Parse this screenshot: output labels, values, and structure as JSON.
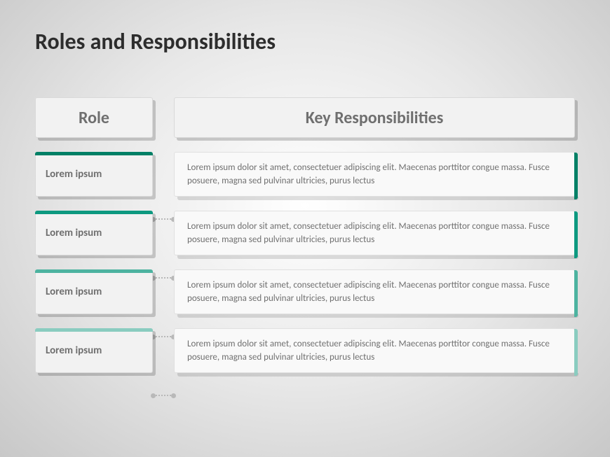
{
  "title": "Roles and Responsibilities",
  "headers": {
    "role": "Role",
    "resp": "Key Responsibilities"
  },
  "row_accents": [
    "#008066",
    "#0d9980",
    "#4db3a0",
    "#8accc0"
  ],
  "resp_accents": [
    "#008066",
    "#0d9980",
    "#4db3a0",
    "#8accc0"
  ],
  "rows": [
    {
      "role": "Lorem ipsum",
      "resp": "Lorem ipsum dolor sit amet, consectetuer adipiscing elit. Maecenas porttitor congue massa. Fusce posuere, magna sed pulvinar ultricies, purus lectus"
    },
    {
      "role": "Lorem ipsum",
      "resp": "Lorem ipsum dolor sit amet, consectetuer adipiscing elit. Maecenas porttitor congue massa. Fusce posuere, magna sed pulvinar ultricies, purus lectus"
    },
    {
      "role": "Lorem ipsum",
      "resp": "Lorem ipsum dolor sit amet, consectetuer adipiscing elit. Maecenas porttitor congue massa. Fusce posuere, magna sed pulvinar ultricies, purus lectus"
    },
    {
      "role": "Lorem ipsum",
      "resp": "Lorem ipsum dolor sit amet, consectetuer adipiscing elit. Maecenas porttitor congue massa. Fusce posuere, magna sed pulvinar ultricies, purus lectus"
    }
  ]
}
